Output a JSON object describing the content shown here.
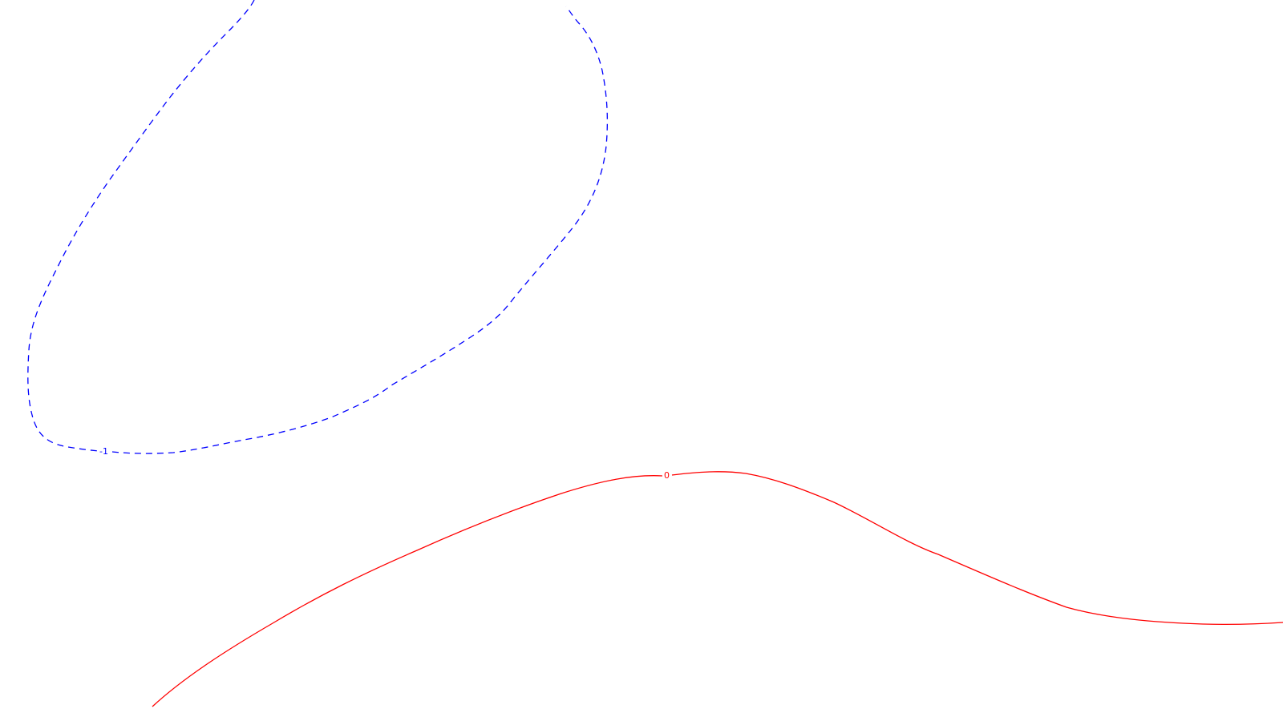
{
  "contours": [
    {
      "name": "blue-dashed-contour",
      "level_label": "-1",
      "color": "#0000ff",
      "style": "dashed"
    },
    {
      "name": "red-solid-contour",
      "level_label": "0",
      "color": "#ff0000",
      "style": "solid"
    }
  ]
}
